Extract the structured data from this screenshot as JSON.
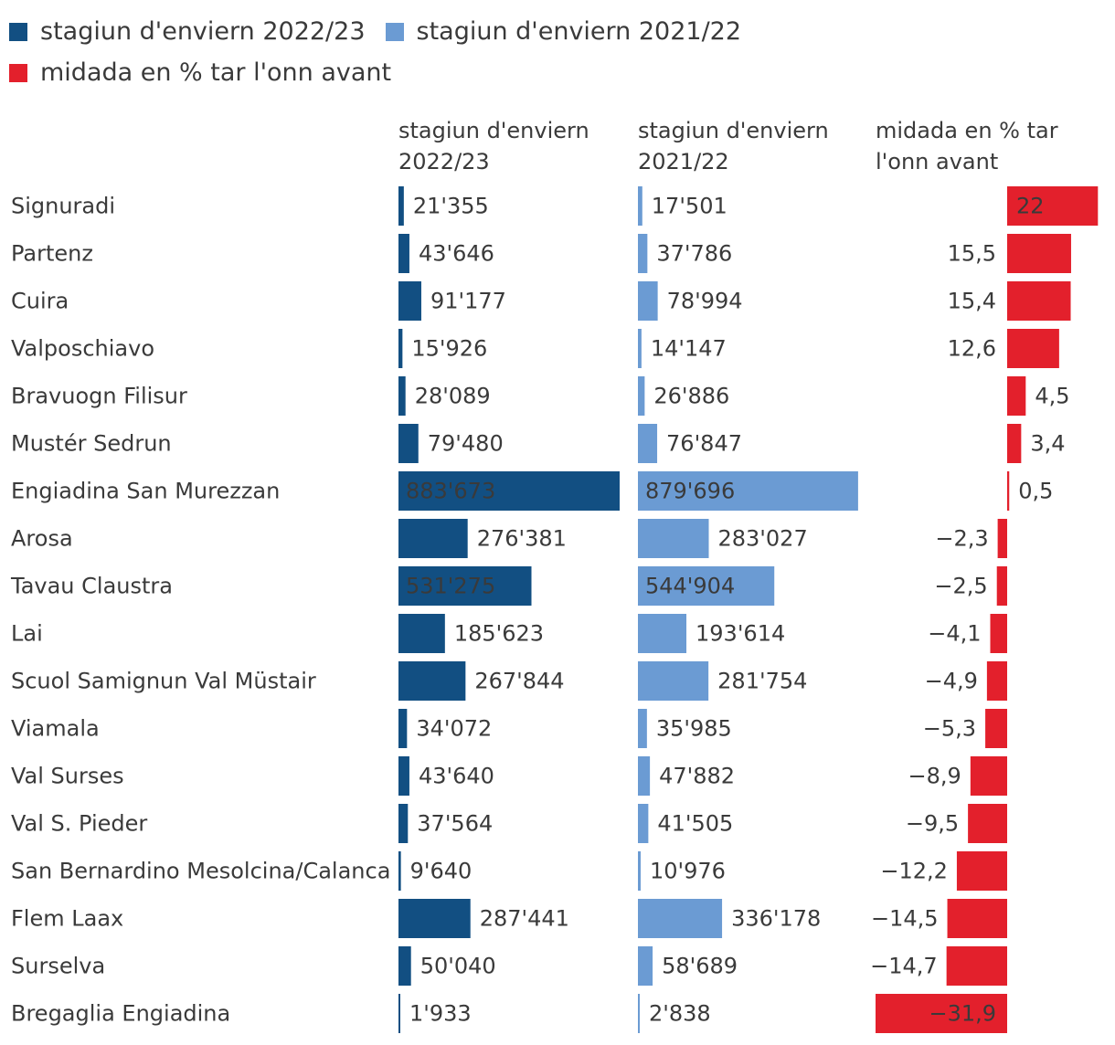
{
  "legend": [
    {
      "label": "stagiun d'enviern 2022/23",
      "color": "#124f82"
    },
    {
      "label": "stagiun d'enviern 2021/22",
      "color": "#6b9bd3"
    },
    {
      "label": "midada en % tar l'onn avant",
      "color": "#e3202c"
    }
  ],
  "column_headers": {
    "col1": "stagiun d'enviern 2022/23",
    "col2": "stagiun d'enviern 2021/22",
    "col3": "midada en % tar l'onn avant"
  },
  "chart_data": {
    "type": "table",
    "colors": {
      "current": "#124f82",
      "previous": "#6b9bd3",
      "change": "#e3202c",
      "text": "#3a3a3a"
    },
    "max_value": 883673,
    "change_range": [
      -31.9,
      22
    ],
    "rows": [
      {
        "region": "Signuradi",
        "current": 21355,
        "current_label": "21'355",
        "previous": 17501,
        "previous_label": "17'501",
        "change": 22,
        "change_label": "22"
      },
      {
        "region": "Partenz",
        "current": 43646,
        "current_label": "43'646",
        "previous": 37786,
        "previous_label": "37'786",
        "change": 15.5,
        "change_label": "15,5"
      },
      {
        "region": "Cuira",
        "current": 91177,
        "current_label": "91'177",
        "previous": 78994,
        "previous_label": "78'994",
        "change": 15.4,
        "change_label": "15,4"
      },
      {
        "region": "Valposchiavo",
        "current": 15926,
        "current_label": "15'926",
        "previous": 14147,
        "previous_label": "14'147",
        "change": 12.6,
        "change_label": "12,6"
      },
      {
        "region": "Bravuogn Filisur",
        "current": 28089,
        "current_label": "28'089",
        "previous": 26886,
        "previous_label": "26'886",
        "change": 4.5,
        "change_label": "4,5"
      },
      {
        "region": "Mustér Sedrun",
        "current": 79480,
        "current_label": "79'480",
        "previous": 76847,
        "previous_label": "76'847",
        "change": 3.4,
        "change_label": "3,4"
      },
      {
        "region": "Engiadina San Murezzan",
        "current": 883673,
        "current_label": "883'673",
        "previous": 879696,
        "previous_label": "879'696",
        "change": 0.5,
        "change_label": "0,5"
      },
      {
        "region": "Arosa",
        "current": 276381,
        "current_label": "276'381",
        "previous": 283027,
        "previous_label": "283'027",
        "change": -2.3,
        "change_label": "−2,3"
      },
      {
        "region": "Tavau Claustra",
        "current": 531275,
        "current_label": "531'275",
        "previous": 544904,
        "previous_label": "544'904",
        "change": -2.5,
        "change_label": "−2,5"
      },
      {
        "region": "Lai",
        "current": 185623,
        "current_label": "185'623",
        "previous": 193614,
        "previous_label": "193'614",
        "change": -4.1,
        "change_label": "−4,1"
      },
      {
        "region": "Scuol Samignun Val Müstair",
        "current": 267844,
        "current_label": "267'844",
        "previous": 281754,
        "previous_label": "281'754",
        "change": -4.9,
        "change_label": "−4,9"
      },
      {
        "region": "Viamala",
        "current": 34072,
        "current_label": "34'072",
        "previous": 35985,
        "previous_label": "35'985",
        "change": -5.3,
        "change_label": "−5,3"
      },
      {
        "region": "Val Surses",
        "current": 43640,
        "current_label": "43'640",
        "previous": 47882,
        "previous_label": "47'882",
        "change": -8.9,
        "change_label": "−8,9"
      },
      {
        "region": "Val S. Pieder",
        "current": 37564,
        "current_label": "37'564",
        "previous": 41505,
        "previous_label": "41'505",
        "change": -9.5,
        "change_label": "−9,5"
      },
      {
        "region": "San Bernardino Mesolcina/Calanca",
        "current": 9640,
        "current_label": "9'640",
        "previous": 10976,
        "previous_label": "10'976",
        "change": -12.2,
        "change_label": "−12,2"
      },
      {
        "region": "Flem Laax",
        "current": 287441,
        "current_label": "287'441",
        "previous": 336178,
        "previous_label": "336'178",
        "change": -14.5,
        "change_label": "−14,5"
      },
      {
        "region": "Surselva",
        "current": 50040,
        "current_label": "50'040",
        "previous": 58689,
        "previous_label": "58'689",
        "change": -14.7,
        "change_label": "−14,7"
      },
      {
        "region": "Bregaglia Engiadina",
        "current": 1933,
        "current_label": "1'933",
        "previous": 2838,
        "previous_label": "2'838",
        "change": -31.9,
        "change_label": "−31,9"
      }
    ]
  }
}
